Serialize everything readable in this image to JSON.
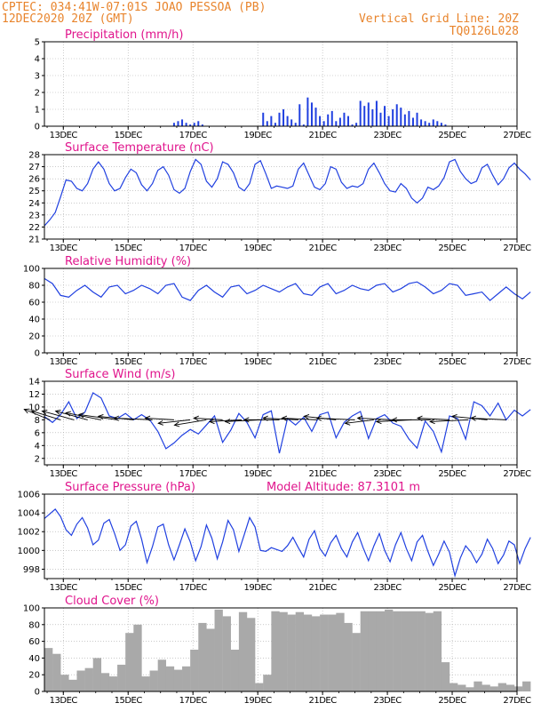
{
  "header": {
    "line1_left": "CPTEC:   034:41W-07:01S  JOAO PESSOA (PB)",
    "line2_left": "12DEC2020 20Z (GMT)",
    "line2_right": "Vertical Grid Line: 20Z",
    "line3_right": "TQ0126L028"
  },
  "colors": {
    "title": "#e0148c",
    "header": "#e8842c",
    "series": "#2040e0",
    "cloud": "#a9a9a9",
    "grid": "#aaaaaa"
  },
  "x_tick_labels": [
    "13DEC",
    "15DEC",
    "17DEC",
    "19DEC",
    "21DEC",
    "23DEC",
    "25DEC",
    "27DEC"
  ],
  "chart_data": [
    {
      "id": "precip",
      "type": "bar",
      "title": "Precipitation (mm/h)",
      "ylim": [
        0,
        5
      ],
      "yticks": [
        0,
        1,
        2,
        3,
        4,
        5
      ],
      "x": [
        32,
        33,
        34,
        35,
        36,
        37,
        38,
        39,
        54,
        55,
        56,
        57,
        58,
        59,
        60,
        61,
        62,
        63,
        64,
        65,
        66,
        67,
        68,
        69,
        70,
        71,
        72,
        73,
        74,
        75,
        76,
        77,
        78,
        79,
        80,
        81,
        82,
        83,
        84,
        85,
        86,
        87,
        88,
        89,
        90,
        91,
        92,
        93,
        94,
        95,
        96,
        97,
        98,
        99
      ],
      "values": [
        0.2,
        0.3,
        0.4,
        0.2,
        0.1,
        0.2,
        0.3,
        0.1,
        0.8,
        0.3,
        0.6,
        0.2,
        0.8,
        1.0,
        0.6,
        0.4,
        0.2,
        1.3,
        0.1,
        1.7,
        1.4,
        1.1,
        0.6,
        0.3,
        0.7,
        0.9,
        0.3,
        0.5,
        0.8,
        0.6,
        0.1,
        0.2,
        1.5,
        1.2,
        1.4,
        1.0,
        1.5,
        0.8,
        1.2,
        0.6,
        1.0,
        1.3,
        1.1,
        0.7,
        0.9,
        0.5,
        0.8,
        0.4,
        0.3,
        0.2,
        0.4,
        0.3,
        0.2,
        0.1
      ]
    },
    {
      "id": "temp",
      "type": "line",
      "title": "Surface Temperature (nC)",
      "ylim": [
        21,
        28
      ],
      "yticks": [
        21,
        22,
        23,
        24,
        25,
        26,
        27,
        28
      ],
      "x": [
        0,
        2,
        4,
        6,
        8,
        10,
        12,
        14,
        16,
        18,
        20,
        22,
        24,
        26,
        28,
        30,
        32,
        34,
        36,
        38,
        40,
        42,
        44,
        46,
        48,
        50,
        52,
        54,
        56,
        58,
        60,
        62,
        64,
        66,
        68,
        70,
        72,
        74,
        76,
        78,
        80,
        82,
        84,
        86,
        88,
        90,
        92,
        94,
        96,
        98,
        100,
        102,
        104,
        106,
        108,
        110,
        112,
        114,
        116,
        118,
        120,
        122,
        124,
        126,
        128,
        130,
        132,
        134,
        136,
        138,
        140,
        142,
        144,
        146,
        148,
        150,
        152,
        154,
        156,
        158,
        160,
        162,
        164,
        166,
        168,
        170,
        172,
        174,
        176,
        178,
        180
      ],
      "values": [
        22.1,
        22.6,
        23.2,
        24.5,
        25.9,
        25.8,
        25.2,
        25.0,
        25.6,
        26.8,
        27.4,
        26.8,
        25.6,
        25.0,
        25.2,
        26.1,
        26.8,
        26.5,
        25.5,
        25.0,
        25.6,
        26.7,
        27.0,
        26.3,
        25.1,
        24.8,
        25.2,
        26.6,
        27.6,
        27.2,
        25.8,
        25.3,
        26.0,
        27.4,
        27.2,
        26.5,
        25.3,
        25.0,
        25.6,
        27.2,
        27.5,
        26.4,
        25.2,
        25.4,
        25.3,
        25.2,
        25.4,
        26.8,
        27.3,
        26.3,
        25.3,
        25.1,
        25.6,
        27.0,
        26.8,
        25.7,
        25.2,
        25.4,
        25.3,
        25.6,
        26.8,
        27.3,
        26.5,
        25.6,
        25.0,
        24.9,
        25.6,
        25.2,
        24.4,
        24.0,
        24.4,
        25.3,
        25.1,
        25.4,
        26.1,
        27.4,
        27.6,
        26.6,
        26.0,
        25.6,
        25.8,
        26.9,
        27.2,
        26.3,
        25.5,
        26.0,
        26.9,
        27.3,
        26.8,
        26.4,
        25.9
      ]
    },
    {
      "id": "rh",
      "type": "line",
      "title": "Relative Humidity (%)",
      "ylim": [
        0,
        100
      ],
      "yticks": [
        0,
        20,
        40,
        60,
        80,
        100
      ],
      "x": [
        0,
        3,
        6,
        9,
        12,
        15,
        18,
        21,
        24,
        27,
        30,
        33,
        36,
        39,
        42,
        45,
        48,
        51,
        54,
        57,
        60,
        63,
        66,
        69,
        72,
        75,
        78,
        81,
        84,
        87,
        90,
        93,
        96,
        99,
        102,
        105,
        108,
        111,
        114,
        117,
        120,
        123,
        126,
        129,
        132,
        135,
        138,
        141,
        144,
        147,
        150,
        153,
        156,
        159,
        162,
        165,
        168,
        171,
        174,
        177,
        180
      ],
      "values": [
        88,
        82,
        68,
        66,
        74,
        80,
        72,
        66,
        78,
        80,
        70,
        74,
        80,
        76,
        70,
        80,
        82,
        66,
        62,
        74,
        80,
        72,
        66,
        78,
        80,
        70,
        74,
        80,
        76,
        72,
        78,
        82,
        70,
        68,
        78,
        82,
        70,
        74,
        80,
        76,
        74,
        80,
        82,
        72,
        76,
        82,
        84,
        78,
        70,
        74,
        82,
        80,
        68,
        70,
        72,
        62,
        70,
        78,
        70,
        64,
        72
      ]
    },
    {
      "id": "wind",
      "type": "line",
      "title": "Surface Wind (m/s)",
      "ylim": [
        1,
        14
      ],
      "yticks": [
        2,
        4,
        6,
        8,
        10,
        12,
        14
      ],
      "x": [
        0,
        3,
        6,
        9,
        12,
        15,
        18,
        21,
        24,
        27,
        30,
        33,
        36,
        39,
        42,
        45,
        48,
        51,
        54,
        57,
        60,
        63,
        66,
        69,
        72,
        75,
        78,
        81,
        84,
        87,
        90,
        93,
        96,
        99,
        102,
        105,
        108,
        111,
        114,
        117,
        120,
        123,
        126,
        129,
        132,
        135,
        138,
        141,
        144,
        147,
        150,
        153,
        156,
        159,
        162,
        165,
        168,
        171,
        174,
        177,
        180
      ],
      "values": [
        8.5,
        7.6,
        8.8,
        10.8,
        8.2,
        9.2,
        12.2,
        11.4,
        8.6,
        8.2,
        9.0,
        8.0,
        8.8,
        8.0,
        6.2,
        3.5,
        4.4,
        5.6,
        6.5,
        5.8,
        7.2,
        8.6,
        4.5,
        6.4,
        9.0,
        7.6,
        5.2,
        8.8,
        9.4,
        2.8,
        8.2,
        7.2,
        8.4,
        6.2,
        8.8,
        9.2,
        5.2,
        7.6,
        8.6,
        9.3,
        5.1,
        8.2,
        8.8,
        7.5,
        7.0,
        5.0,
        3.6,
        7.8,
        6.2,
        3.0,
        8.6,
        8.2,
        5.0,
        10.8,
        10.2,
        8.6,
        10.6,
        8.0,
        9.5,
        8.6,
        9.6
      ]
    },
    {
      "id": "pressure",
      "type": "line",
      "title": "Surface Pressure (hPa)",
      "annotation": "Model Altitude: 87.3101 m",
      "ylim": [
        997,
        1006
      ],
      "yticks": [
        998,
        1000,
        1002,
        1004,
        1006
      ],
      "x": [
        0,
        2,
        4,
        6,
        8,
        10,
        12,
        14,
        16,
        18,
        20,
        22,
        24,
        26,
        28,
        30,
        32,
        34,
        36,
        38,
        40,
        42,
        44,
        46,
        48,
        50,
        52,
        54,
        56,
        58,
        60,
        62,
        64,
        66,
        68,
        70,
        72,
        74,
        76,
        78,
        80,
        82,
        84,
        86,
        88,
        90,
        92,
        94,
        96,
        98,
        100,
        102,
        104,
        106,
        108,
        110,
        112,
        114,
        116,
        118,
        120,
        122,
        124,
        126,
        128,
        130,
        132,
        134,
        136,
        138,
        140,
        142,
        144,
        146,
        148,
        150,
        152,
        154,
        156,
        158,
        160,
        162,
        164,
        166,
        168,
        170,
        172,
        174,
        176,
        178,
        180
      ],
      "values": [
        1003.4,
        1003.9,
        1004.4,
        1003.6,
        1002.2,
        1001.6,
        1002.8,
        1003.5,
        1002.4,
        1000.6,
        1001.1,
        1002.9,
        1003.3,
        1001.8,
        1000.0,
        1000.6,
        1002.6,
        1003.1,
        1001.2,
        998.7,
        1000.4,
        1002.5,
        1002.8,
        1000.6,
        999.0,
        1000.6,
        1002.3,
        1000.9,
        998.9,
        1000.4,
        1002.7,
        1001.3,
        999.1,
        1000.9,
        1003.2,
        1002.2,
        999.9,
        1001.7,
        1003.5,
        1002.5,
        1000.0,
        999.9,
        1000.3,
        1000.1,
        999.9,
        1000.5,
        1001.4,
        1000.3,
        999.3,
        1001.2,
        1002.1,
        1000.2,
        999.4,
        1000.8,
        1001.6,
        1000.2,
        999.3,
        1000.9,
        1001.9,
        1000.3,
        998.9,
        1000.5,
        1001.8,
        1000.0,
        998.8,
        1000.6,
        1001.9,
        1000.2,
        998.9,
        1000.9,
        1001.6,
        999.9,
        998.4,
        999.6,
        1001.0,
        999.8,
        997.3,
        999.2,
        1000.5,
        999.8,
        998.7,
        999.6,
        1001.2,
        1000.2,
        998.6,
        999.5,
        1001.0,
        1000.6,
        998.6,
        1000.2,
        1001.4
      ]
    },
    {
      "id": "cloud",
      "type": "bar",
      "title": "Cloud Cover (%)",
      "ylim": [
        0,
        100
      ],
      "yticks": [
        0,
        20,
        40,
        60,
        80,
        100
      ],
      "x": [
        0,
        3,
        6,
        9,
        12,
        15,
        18,
        21,
        24,
        27,
        30,
        33,
        36,
        39,
        42,
        45,
        48,
        51,
        54,
        57,
        60,
        63,
        66,
        69,
        72,
        75,
        78,
        81,
        84,
        87,
        90,
        93,
        96,
        99,
        102,
        105,
        108,
        111,
        114,
        117,
        120,
        123,
        126,
        129,
        132,
        135,
        138,
        141,
        144,
        147,
        150,
        153,
        156,
        159,
        162,
        165,
        168,
        171,
        174,
        177
      ],
      "values": [
        52,
        45,
        20,
        14,
        25,
        28,
        40,
        22,
        18,
        32,
        70,
        80,
        18,
        25,
        38,
        30,
        26,
        30,
        50,
        82,
        75,
        98,
        90,
        50,
        95,
        88,
        10,
        20,
        96,
        95,
        92,
        95,
        92,
        90,
        92,
        92,
        94,
        82,
        70,
        96,
        96,
        96,
        98,
        96,
        96,
        96,
        96,
        94,
        96,
        35,
        10,
        8,
        5,
        12,
        8,
        6,
        10,
        8,
        6,
        12
      ]
    }
  ],
  "wind_vectors": [
    {
      "t": 2,
      "u": 8,
      "v": 6
    },
    {
      "t": 6,
      "u": 9,
      "v": 5
    },
    {
      "t": 11,
      "u": 10,
      "v": 5
    },
    {
      "t": 16,
      "u": 10,
      "v": 5
    },
    {
      "t": 21,
      "u": 11,
      "v": 4
    },
    {
      "t": 27,
      "u": 12,
      "v": 3
    },
    {
      "t": 33,
      "u": 11,
      "v": 2
    },
    {
      "t": 40,
      "u": 12,
      "v": 1
    },
    {
      "t": 48,
      "u": 9,
      "v": 1
    },
    {
      "t": 54,
      "u": 10,
      "v": -2
    },
    {
      "t": 60,
      "u": 10,
      "v": -3
    },
    {
      "t": 66,
      "u": 9,
      "v": 1
    },
    {
      "t": 73,
      "u": 10,
      "v": -1
    },
    {
      "t": 80,
      "u": 11,
      "v": -1
    },
    {
      "t": 87,
      "u": 11,
      "v": 0
    },
    {
      "t": 94,
      "u": 11,
      "v": 1
    },
    {
      "t": 101,
      "u": 11,
      "v": 1
    },
    {
      "t": 108,
      "u": 10,
      "v": 2
    },
    {
      "t": 115,
      "u": 12,
      "v": 1
    },
    {
      "t": 122,
      "u": 9,
      "v": -2
    },
    {
      "t": 129,
      "u": 11,
      "v": 1
    },
    {
      "t": 136,
      "u": 11,
      "v": -1
    },
    {
      "t": 143,
      "u": 12,
      "v": 0
    },
    {
      "t": 150,
      "u": 10,
      "v": 1
    },
    {
      "t": 157,
      "u": 12,
      "v": -1
    },
    {
      "t": 164,
      "u": 11,
      "v": 2
    },
    {
      "t": 171,
      "u": 11,
      "v": 1
    }
  ]
}
